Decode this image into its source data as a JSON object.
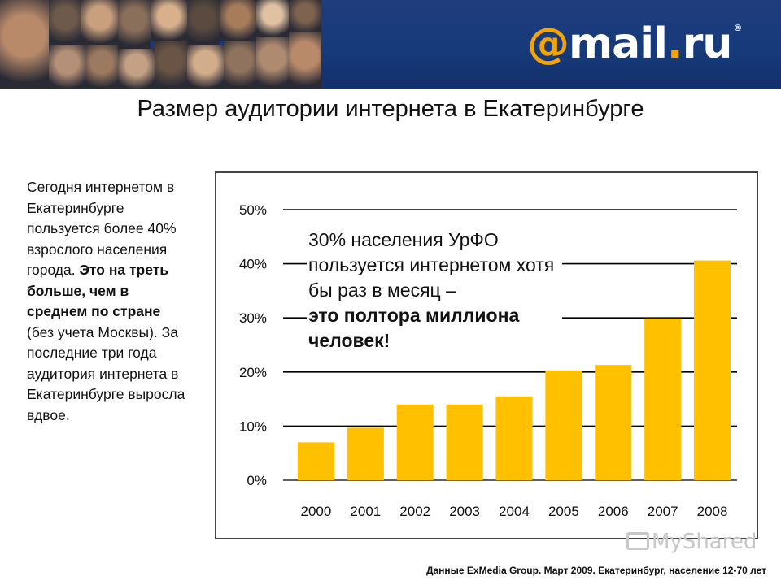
{
  "header": {
    "logo_at": "@",
    "logo_word": "mail",
    "logo_dot": ".",
    "logo_tld": "ru",
    "logo_reg": "®"
  },
  "title": "Размер аудитории интернета в Екатеринбурге",
  "left_text": {
    "part1": "Сегодня интернетом в Екатеринбурге пользуется более 40% взрослого населения города. ",
    "bold": "Это на треть больше, чем в среднем по стране",
    "part2": " (без учета Москвы). За последние три года аудитория интернета в Екатеринбурге выросла вдвое."
  },
  "callout": {
    "line_normal": "30% населения УрФО пользуется интернетом хотя бы раз в месяц –",
    "line_bold": "это полтора миллиона человек!"
  },
  "chart_data": {
    "type": "bar",
    "categories": [
      "2000",
      "2001",
      "2002",
      "2003",
      "2004",
      "2005",
      "2006",
      "2007",
      "2008"
    ],
    "values": [
      7,
      9.7,
      14,
      14,
      15.5,
      20.3,
      21.3,
      29.9,
      40.6
    ],
    "yticks": [
      "0%",
      "10%",
      "20%",
      "30%",
      "40%",
      "50%"
    ],
    "ylim": [
      0,
      50
    ],
    "grid": true,
    "bar_color": "#ffc000"
  },
  "footnote": "Данные ExMedia Group. Март 2009. Екатеринбург, население 12-70 лет",
  "watermark": {
    "label": "MyShared"
  },
  "colors": {
    "header_bg": "#1a3a7c",
    "logo_accent": "#f5a300",
    "bar": "#ffc000"
  }
}
